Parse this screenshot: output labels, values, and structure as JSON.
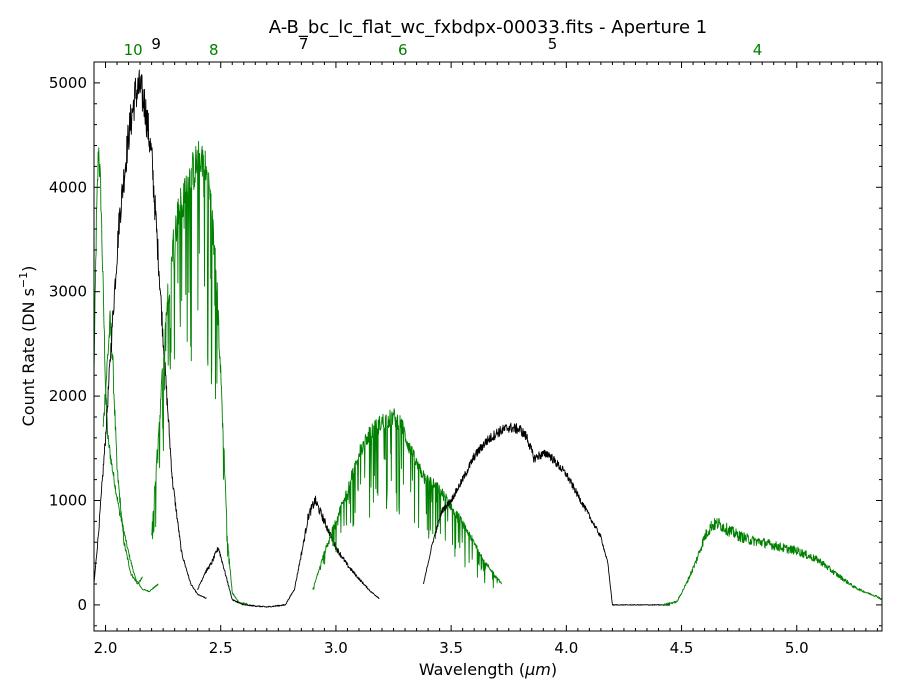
{
  "chart_data": {
    "type": "line",
    "title": "A-B_bc_lc_flat_wc_fxbdpx-00033.fits - Aperture 1",
    "xlabel_prefix": "Wavelength (",
    "xlabel_unit": "μm",
    "xlabel_suffix": ")",
    "ylabel_main": "Count Rate (DN s",
    "ylabel_exp": "−1",
    "ylabel_close": ")",
    "xlim": [
      1.95,
      5.37
    ],
    "ylim": [
      -250,
      5200
    ],
    "xticks": [
      2.0,
      2.5,
      3.0,
      3.5,
      4.0,
      4.5,
      5.0
    ],
    "xtick_labels": [
      "2.0",
      "2.5",
      "3.0",
      "3.5",
      "4.0",
      "4.5",
      "5.0"
    ],
    "yticks": [
      0,
      1000,
      2000,
      3000,
      4000,
      5000
    ],
    "ytick_labels": [
      "0",
      "1000",
      "2000",
      "3000",
      "4000",
      "5000"
    ],
    "grid": false,
    "colors": {
      "black": "#000000",
      "green": "#008000"
    },
    "orders": [
      {
        "label": "10",
        "x": 2.12,
        "color": "green",
        "row": 1
      },
      {
        "label": "9",
        "x": 2.22,
        "color": "black",
        "row": 0
      },
      {
        "label": "8",
        "x": 2.47,
        "color": "green",
        "row": 1
      },
      {
        "label": "7",
        "x": 2.86,
        "color": "black",
        "row": 0
      },
      {
        "label": "6",
        "x": 3.29,
        "color": "green",
        "row": 1
      },
      {
        "label": "5",
        "x": 3.94,
        "color": "black",
        "row": 0
      },
      {
        "label": "4",
        "x": 4.83,
        "color": "green",
        "row": 1
      }
    ],
    "series": [
      {
        "color": "green",
        "noise": 0.04,
        "fringe": 0.0,
        "points": [
          [
            1.95,
            2200
          ],
          [
            1.96,
            3600
          ],
          [
            1.97,
            4400
          ],
          [
            1.98,
            3900
          ],
          [
            1.99,
            3000
          ],
          [
            2.0,
            2100
          ],
          [
            2.01,
            1600
          ],
          [
            2.03,
            1300
          ],
          [
            2.06,
            900
          ],
          [
            2.1,
            500
          ],
          [
            2.13,
            250
          ],
          [
            2.16,
            150
          ],
          [
            2.19,
            130
          ],
          [
            2.23,
            200
          ]
        ]
      },
      {
        "color": "green",
        "noise": 0.05,
        "fringe": 0.0,
        "points": [
          [
            1.99,
            1700
          ],
          [
            2.01,
            2400
          ],
          [
            2.02,
            2700
          ],
          [
            2.03,
            2400
          ],
          [
            2.05,
            1300
          ],
          [
            2.08,
            600
          ],
          [
            2.11,
            300
          ],
          [
            2.14,
            200
          ],
          [
            2.16,
            260
          ]
        ]
      },
      {
        "color": "black",
        "noise": 0.04,
        "fringe": 0.0,
        "points": [
          [
            1.95,
            200
          ],
          [
            1.97,
            700
          ],
          [
            2.0,
            1600
          ],
          [
            2.03,
            2700
          ],
          [
            2.06,
            3700
          ],
          [
            2.1,
            4500
          ],
          [
            2.13,
            4900
          ],
          [
            2.15,
            4950
          ],
          [
            2.17,
            4800
          ],
          [
            2.2,
            4300
          ],
          [
            2.23,
            3300
          ],
          [
            2.26,
            2200
          ],
          [
            2.29,
            1200
          ],
          [
            2.33,
            500
          ],
          [
            2.37,
            200
          ],
          [
            2.4,
            100
          ],
          [
            2.44,
            60
          ]
        ]
      },
      {
        "color": "green",
        "noise": 0.05,
        "fringe": 0.45,
        "points": [
          [
            2.2,
            700
          ],
          [
            2.23,
            1600
          ],
          [
            2.26,
            2700
          ],
          [
            2.29,
            3400
          ],
          [
            2.32,
            3800
          ],
          [
            2.36,
            4050
          ],
          [
            2.39,
            4200
          ],
          [
            2.42,
            4300
          ],
          [
            2.45,
            4000
          ],
          [
            2.48,
            3200
          ],
          [
            2.51,
            1700
          ],
          [
            2.53,
            600
          ],
          [
            2.55,
            120
          ],
          [
            2.58,
            20
          ],
          [
            2.62,
            10
          ]
        ]
      },
      {
        "color": "black",
        "noise": 0.05,
        "fringe": 0.0,
        "points": [
          [
            2.4,
            150
          ],
          [
            2.43,
            300
          ],
          [
            2.46,
            400
          ],
          [
            2.49,
            550
          ],
          [
            2.52,
            300
          ],
          [
            2.55,
            50
          ],
          [
            2.6,
            0
          ],
          [
            2.7,
            -20
          ],
          [
            2.78,
            0
          ],
          [
            2.82,
            150
          ],
          [
            2.86,
            600
          ],
          [
            2.88,
            850
          ],
          [
            2.91,
            1000
          ],
          [
            2.94,
            850
          ],
          [
            2.97,
            700
          ],
          [
            3.0,
            550
          ],
          [
            3.05,
            380
          ],
          [
            3.1,
            250
          ],
          [
            3.15,
            130
          ],
          [
            3.19,
            60
          ]
        ]
      },
      {
        "color": "green",
        "noise": 0.05,
        "fringe": 0.5,
        "points": [
          [
            2.9,
            150
          ],
          [
            2.95,
            500
          ],
          [
            3.0,
            800
          ],
          [
            3.05,
            1100
          ],
          [
            3.1,
            1450
          ],
          [
            3.15,
            1650
          ],
          [
            3.2,
            1750
          ],
          [
            3.25,
            1800
          ],
          [
            3.28,
            1750
          ],
          [
            3.32,
            1500
          ],
          [
            3.36,
            1300
          ],
          [
            3.4,
            1200
          ],
          [
            3.45,
            1100
          ],
          [
            3.5,
            950
          ],
          [
            3.55,
            780
          ],
          [
            3.6,
            600
          ],
          [
            3.65,
            400
          ],
          [
            3.72,
            200
          ]
        ]
      },
      {
        "color": "black",
        "noise": 0.03,
        "fringe": 0.0,
        "points": [
          [
            3.38,
            200
          ],
          [
            3.42,
            600
          ],
          [
            3.46,
            900
          ],
          [
            3.5,
            1000
          ],
          [
            3.55,
            1200
          ],
          [
            3.6,
            1420
          ],
          [
            3.65,
            1560
          ],
          [
            3.7,
            1650
          ],
          [
            3.75,
            1700
          ],
          [
            3.8,
            1680
          ],
          [
            3.83,
            1600
          ],
          [
            3.86,
            1400
          ],
          [
            3.88,
            1430
          ],
          [
            3.92,
            1450
          ],
          [
            3.96,
            1350
          ],
          [
            4.0,
            1250
          ],
          [
            4.05,
            1050
          ],
          [
            4.1,
            850
          ],
          [
            4.15,
            650
          ],
          [
            4.18,
            400
          ],
          [
            4.2,
            0
          ],
          [
            4.25,
            0
          ],
          [
            4.35,
            0
          ],
          [
            4.45,
            0
          ]
        ]
      },
      {
        "color": "green",
        "noise": 0.08,
        "fringe": 0.0,
        "points": [
          [
            4.42,
            0
          ],
          [
            4.48,
            30
          ],
          [
            4.52,
            200
          ],
          [
            4.56,
            400
          ],
          [
            4.6,
            650
          ],
          [
            4.63,
            760
          ],
          [
            4.66,
            780
          ],
          [
            4.7,
            720
          ],
          [
            4.75,
            660
          ],
          [
            4.8,
            620
          ],
          [
            4.85,
            600
          ],
          [
            4.9,
            570
          ],
          [
            4.95,
            540
          ],
          [
            5.0,
            520
          ],
          [
            5.05,
            470
          ],
          [
            5.1,
            420
          ],
          [
            5.15,
            330
          ],
          [
            5.2,
            250
          ],
          [
            5.25,
            170
          ],
          [
            5.3,
            120
          ],
          [
            5.35,
            80
          ],
          [
            5.37,
            50
          ]
        ]
      }
    ]
  }
}
